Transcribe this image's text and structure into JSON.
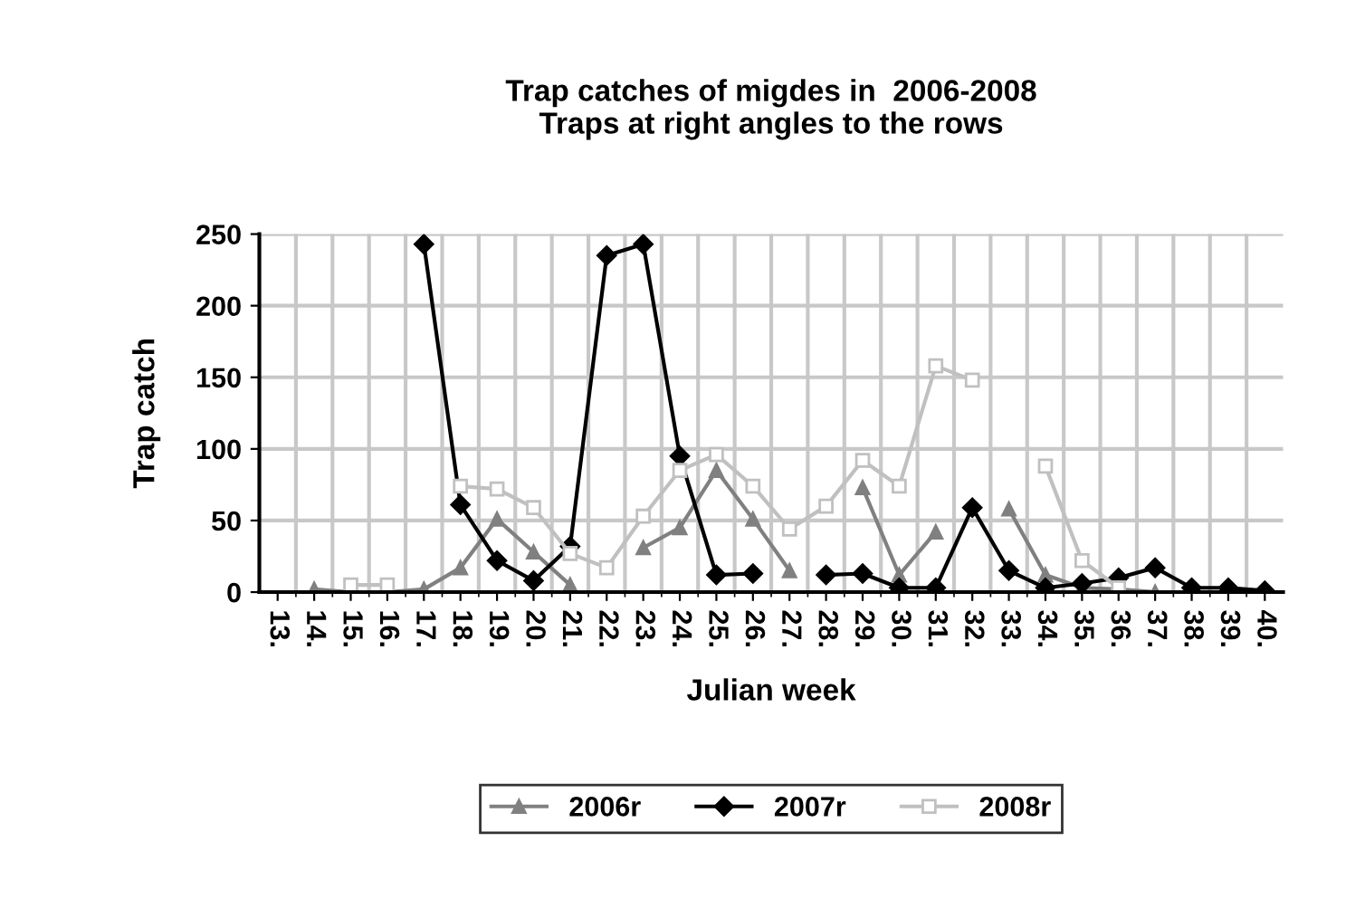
{
  "chart_data": {
    "type": "line",
    "title": "Trap catches of migdes in  2006-2008\nTraps at right angles to the rows",
    "xlabel": "Julian week",
    "ylabel": "Trap catch",
    "categories": [
      "13.",
      "14.",
      "15.",
      "16.",
      "17.",
      "18.",
      "19.",
      "20.",
      "21.",
      "22.",
      "23.",
      "24.",
      "25.",
      "26.",
      "27.",
      "28.",
      "29.",
      "30.",
      "31.",
      "32.",
      "33.",
      "34.",
      "35.",
      "36.",
      "37.",
      "38.",
      "39.",
      "40."
    ],
    "series": [
      {
        "name": "2006r",
        "color": "#808080",
        "marker": "triangle",
        "values": [
          null,
          2,
          0,
          0,
          2,
          17,
          51,
          28,
          5,
          null,
          31,
          45,
          85,
          51,
          15,
          null,
          73,
          12,
          42,
          null,
          58,
          12,
          3,
          2,
          0,
          null,
          null,
          null
        ]
      },
      {
        "name": "2007r",
        "color": "#000000",
        "marker": "diamond",
        "values": [
          null,
          null,
          null,
          null,
          243,
          61,
          22,
          8,
          32,
          235,
          243,
          95,
          12,
          13,
          null,
          12,
          13,
          3,
          3,
          59,
          15,
          3,
          6,
          10,
          17,
          3,
          3,
          1
        ]
      },
      {
        "name": "2008r",
        "color": "#c0c0c0",
        "marker": "square",
        "values": [
          null,
          null,
          5,
          5,
          null,
          74,
          72,
          59,
          27,
          17,
          53,
          85,
          96,
          74,
          44,
          60,
          92,
          74,
          158,
          148,
          null,
          88,
          22,
          3,
          null,
          null,
          null,
          null
        ]
      }
    ],
    "ylim": [
      0,
      250
    ],
    "yticks": [
      0,
      50,
      100,
      150,
      200,
      250
    ],
    "grid": true,
    "legend": "bottom"
  }
}
